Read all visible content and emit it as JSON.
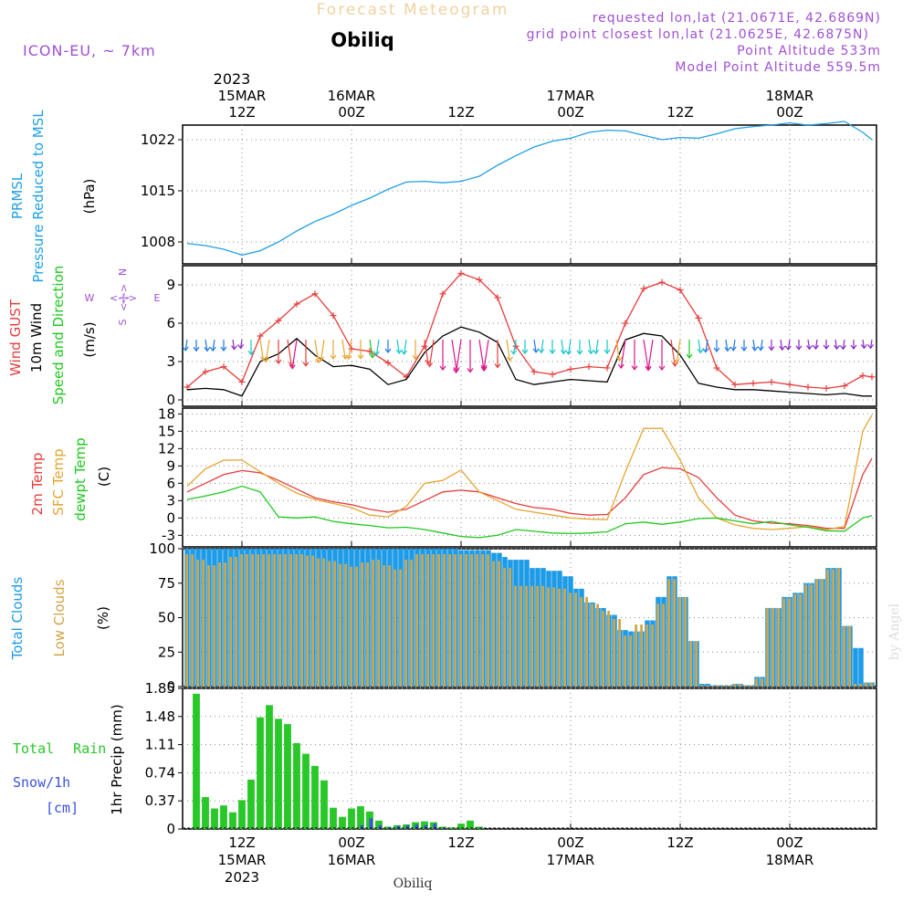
{
  "header": {
    "title": "Forecast Meteogram",
    "location": "Obiliq",
    "model": "ICON-EU, ~ 7km",
    "requested": "requested lon,lat (21.0671E, 42.6869N)",
    "gridpoint": "grid point closest lon,lat (21.0625E, 42.6875N)",
    "point_altitude": "Point Altitude 533m",
    "model_altitude": "Model Point Altitude 559.5m"
  },
  "footer": {
    "location": "Obiliq",
    "credit": "by Angel"
  },
  "time_axis": {
    "year": "2023",
    "ticks": [
      {
        "hour": 12,
        "top": "12Z",
        "date": "15MAR",
        "year": "2023"
      },
      {
        "hour": 24,
        "top": "00Z",
        "date": "16MAR"
      },
      {
        "hour": 36,
        "top": "12Z"
      },
      {
        "hour": 48,
        "top": "00Z",
        "date": "17MAR"
      },
      {
        "hour": 60,
        "top": "12Z"
      },
      {
        "hour": 72,
        "top": "00Z",
        "date": "18MAR"
      }
    ]
  },
  "colors": {
    "pressure": "#1ea0e6",
    "gust": "#e83c3c",
    "wind": "#000000",
    "windlabel": "#1ec81e",
    "t2m": "#e83c3c",
    "sfc": "#e6a532",
    "dew": "#1ec81e",
    "total_clouds": "#1e9be6",
    "low_clouds": "#d2a546",
    "rain": "#28c828",
    "snow": "#3c50dc",
    "purple": "#a050d2"
  },
  "chart_data": [
    {
      "type": "line",
      "panel": "pressure",
      "ylabel": [
        "PRMSL",
        "Pressure Reduced to MSL",
        "(hPa)"
      ],
      "yticks": [
        1008,
        1015,
        1022
      ],
      "ylim": [
        1005,
        1024
      ],
      "series": [
        {
          "name": "PRMSL",
          "x": [
            6,
            8,
            10,
            12,
            14,
            16,
            18,
            20,
            22,
            24,
            26,
            28,
            30,
            32,
            34,
            36,
            38,
            40,
            42,
            44,
            46,
            48,
            50,
            52,
            54,
            56,
            58,
            60,
            62,
            64,
            66,
            68,
            70,
            72,
            74,
            76,
            78,
            80,
            81
          ],
          "values": [
            1007.8,
            1007.5,
            1007.0,
            1006.2,
            1006.8,
            1008.0,
            1009.5,
            1010.8,
            1011.8,
            1013.0,
            1014.0,
            1015.2,
            1016.2,
            1016.3,
            1016.1,
            1016.3,
            1017.0,
            1018.5,
            1019.8,
            1021.0,
            1021.8,
            1022.2,
            1023.0,
            1023.3,
            1023.2,
            1022.6,
            1022.0,
            1022.3,
            1022.2,
            1022.8,
            1023.5,
            1023.8,
            1024.0,
            1024.3,
            1024.0,
            1024.2,
            1024.5,
            1023.0,
            1022.0
          ]
        }
      ]
    },
    {
      "type": "line",
      "panel": "wind",
      "ylabel": [
        "Wind GUST",
        "10m Wind",
        "Speed and Direction",
        "(m/s)"
      ],
      "compass": {
        "n": "N",
        "s": "S",
        "w": "W",
        "e": "E"
      },
      "yticks": [
        0,
        3,
        6,
        9
      ],
      "ylim": [
        -0.5,
        10.5
      ],
      "series": [
        {
          "name": "Wind GUST",
          "x": [
            6,
            8,
            10,
            12,
            14,
            16,
            18,
            20,
            22,
            24,
            26,
            28,
            30,
            32,
            34,
            36,
            38,
            40,
            42,
            44,
            46,
            48,
            50,
            52,
            54,
            56,
            58,
            60,
            62,
            64,
            66,
            68,
            70,
            72,
            74,
            76,
            78,
            80,
            81
          ],
          "values": [
            1.0,
            2.2,
            2.6,
            1.4,
            5.0,
            6.2,
            7.5,
            8.3,
            6.6,
            4.0,
            3.8,
            2.9,
            1.8,
            4.2,
            8.3,
            9.9,
            9.4,
            8.0,
            4.2,
            2.2,
            2.0,
            2.4,
            2.6,
            2.5,
            6.0,
            8.7,
            9.2,
            8.6,
            6.4,
            2.5,
            1.2,
            1.3,
            1.4,
            1.2,
            1.0,
            0.9,
            1.1,
            1.9,
            1.8
          ]
        },
        {
          "name": "10m Wind",
          "x": [
            6,
            8,
            10,
            12,
            14,
            16,
            18,
            20,
            22,
            24,
            26,
            28,
            30,
            32,
            34,
            36,
            38,
            40,
            42,
            44,
            46,
            48,
            50,
            52,
            54,
            56,
            58,
            60,
            62,
            64,
            66,
            68,
            70,
            72,
            74,
            76,
            78,
            80,
            81
          ],
          "values": [
            0.8,
            0.9,
            0.8,
            0.3,
            3.0,
            3.6,
            4.8,
            3.5,
            2.6,
            2.7,
            2.4,
            1.2,
            1.6,
            3.7,
            5.0,
            5.7,
            5.3,
            4.5,
            1.6,
            1.2,
            1.4,
            1.6,
            1.5,
            1.4,
            4.7,
            5.2,
            5.0,
            3.5,
            1.3,
            1.0,
            0.8,
            0.8,
            0.7,
            0.6,
            0.5,
            0.4,
            0.5,
            0.3,
            0.3
          ]
        }
      ]
    },
    {
      "type": "line",
      "panel": "temperature",
      "ylabel": [
        "2m Temp",
        "SFC Temp",
        "dewpt Temp",
        "(C)"
      ],
      "yticks": [
        -3,
        0,
        3,
        6,
        9,
        12,
        15,
        18
      ],
      "ylim": [
        -5,
        19
      ],
      "series": [
        {
          "name": "2m Temp",
          "x": [
            6,
            8,
            10,
            12,
            14,
            16,
            18,
            20,
            22,
            24,
            26,
            28,
            30,
            32,
            34,
            36,
            38,
            40,
            42,
            44,
            46,
            48,
            50,
            52,
            54,
            56,
            58,
            60,
            62,
            64,
            66,
            68,
            70,
            72,
            74,
            76,
            78,
            80,
            81
          ],
          "values": [
            4.5,
            6.0,
            7.5,
            8.2,
            7.8,
            6.5,
            5.0,
            3.5,
            2.8,
            2.3,
            1.5,
            1.0,
            1.5,
            3.0,
            4.5,
            4.8,
            4.5,
            3.5,
            2.5,
            1.8,
            1.5,
            0.8,
            0.5,
            0.6,
            3.5,
            7.5,
            8.7,
            8.5,
            7.0,
            3.5,
            0.5,
            -0.5,
            -0.9,
            -1.0,
            -1.3,
            -1.8,
            -1.8,
            7.5,
            10.3
          ]
        },
        {
          "name": "SFC Temp",
          "x": [
            6,
            8,
            10,
            12,
            14,
            16,
            18,
            20,
            22,
            24,
            26,
            28,
            30,
            32,
            34,
            36,
            38,
            40,
            42,
            44,
            46,
            48,
            50,
            52,
            54,
            56,
            58,
            60,
            62,
            64,
            66,
            68,
            70,
            72,
            74,
            76,
            78,
            80,
            81
          ],
          "values": [
            5.5,
            8.5,
            10.0,
            10.0,
            8.0,
            6.0,
            4.3,
            3.2,
            2.5,
            1.8,
            0.5,
            0.2,
            2.0,
            6.0,
            6.5,
            8.3,
            4.5,
            3.0,
            1.5,
            1.0,
            0.5,
            0.0,
            -0.2,
            -0.3,
            8.0,
            15.5,
            15.5,
            10.0,
            3.5,
            0.0,
            -1.2,
            -1.8,
            -2.0,
            -1.8,
            -1.5,
            -2.0,
            -1.5,
            15.0,
            17.8
          ]
        },
        {
          "name": "dewpt Temp",
          "x": [
            6,
            8,
            10,
            12,
            14,
            16,
            18,
            20,
            22,
            24,
            26,
            28,
            30,
            32,
            34,
            36,
            38,
            40,
            42,
            44,
            46,
            48,
            50,
            52,
            54,
            56,
            58,
            60,
            62,
            64,
            66,
            68,
            70,
            72,
            74,
            76,
            78,
            80,
            81
          ],
          "values": [
            3.2,
            3.8,
            4.5,
            5.5,
            4.5,
            0.2,
            0.0,
            0.2,
            -0.6,
            -1.0,
            -1.3,
            -1.7,
            -1.6,
            -2.0,
            -2.6,
            -3.2,
            -3.4,
            -3.0,
            -2.0,
            -2.3,
            -2.6,
            -2.7,
            -2.6,
            -2.4,
            -1.0,
            -0.7,
            -1.1,
            -0.7,
            -0.1,
            0.0,
            -0.5,
            -1.0,
            -0.6,
            -1.2,
            -1.6,
            -2.2,
            -2.3,
            0.0,
            0.4
          ]
        }
      ]
    },
    {
      "type": "bar",
      "panel": "clouds",
      "ylabel": [
        "Total Clouds",
        "Low Clouds",
        "(%)"
      ],
      "yticks": [
        0,
        25,
        50,
        75,
        100
      ],
      "ylim": [
        0,
        100
      ],
      "x_start": 6,
      "series": [
        {
          "name": "Total Clouds",
          "values": [
            100,
            100,
            100,
            100,
            100,
            100,
            100,
            100,
            100,
            100,
            100,
            100,
            100,
            100,
            100,
            100,
            100,
            100,
            100,
            100,
            100,
            100,
            100,
            100,
            100,
            100,
            100,
            100,
            100,
            100,
            100,
            100,
            100,
            100,
            100,
            100,
            100,
            100,
            100,
            100,
            100,
            100,
            100,
            100,
            100,
            100,
            100,
            100,
            100,
            100,
            99,
            99,
            99,
            99,
            99,
            99,
            97,
            97,
            94,
            92,
            92,
            92,
            92,
            86,
            86,
            86,
            84,
            84,
            84,
            80,
            80,
            71,
            71,
            61,
            61,
            57,
            57,
            52,
            52,
            41,
            41,
            40,
            40,
            40,
            48,
            48,
            65,
            65,
            80,
            80,
            65,
            65,
            33,
            33,
            2,
            2,
            1,
            1,
            1,
            1,
            2,
            2,
            1,
            1,
            7,
            7,
            57,
            57,
            57,
            65,
            65,
            68,
            68,
            75,
            75,
            78,
            78,
            86,
            86,
            86,
            44,
            44,
            28,
            28,
            3,
            3,
            7,
            7
          ]
        },
        {
          "name": "Low Clouds",
          "values": [
            96,
            96,
            92,
            92,
            88,
            88,
            90,
            90,
            94,
            94,
            96,
            96,
            96,
            96,
            96,
            96,
            96,
            96,
            96,
            96,
            96,
            96,
            95,
            95,
            93,
            93,
            91,
            91,
            89,
            89,
            87,
            87,
            90,
            90,
            92,
            92,
            88,
            88,
            85,
            85,
            92,
            92,
            96,
            96,
            96,
            96,
            96,
            96,
            96,
            96,
            96,
            96,
            96,
            96,
            96,
            96,
            91,
            91,
            86,
            86,
            73,
            73,
            73,
            73,
            73,
            73,
            72,
            72,
            71,
            71,
            68,
            68,
            65,
            65,
            60,
            60,
            55,
            55,
            49,
            49,
            37,
            37,
            45,
            45,
            45,
            45,
            60,
            60,
            78,
            78,
            65,
            65,
            33,
            33,
            1,
            1,
            1,
            1,
            1,
            1,
            2,
            2,
            1,
            1,
            6,
            6,
            57,
            57,
            57,
            64,
            64,
            67,
            67,
            74,
            74,
            78,
            78,
            85,
            85,
            86,
            44,
            44,
            2,
            2,
            3,
            3,
            7,
            7
          ]
        }
      ]
    },
    {
      "type": "bar",
      "panel": "precipitation",
      "ylabel": [
        "1hr Precip (mm)"
      ],
      "legend": {
        "rain": "Total Rain",
        "snow": "Snow/1h",
        "snow_unit": "[cm]"
      },
      "yticks": [
        "0",
        "0.37",
        "0.74",
        "1.11",
        "1.48",
        "1.85"
      ],
      "ylim": [
        0,
        1.85
      ],
      "x_start": 7,
      "series": [
        {
          "name": "Total Rain",
          "values": [
            1.78,
            0.42,
            0.27,
            0.31,
            0.22,
            0.38,
            0.65,
            1.47,
            1.63,
            1.45,
            1.38,
            1.13,
            0.99,
            0.83,
            0.64,
            0.28,
            0.16,
            0.27,
            0.3,
            0.23,
            0.11,
            0.03,
            0.05,
            0.06,
            0.09,
            0.1,
            0.09,
            0.03,
            0.02,
            0.07,
            0.11,
            0.03,
            0.0,
            0.0,
            0.0,
            0.0
          ]
        },
        {
          "name": "Snow/1h",
          "values": [
            0,
            0,
            0,
            0,
            0,
            0,
            0,
            0,
            0,
            0,
            0,
            0,
            0,
            0,
            0,
            0,
            0,
            0,
            0.05,
            0.14,
            0.05,
            0.02,
            0.04,
            0.05,
            0.06,
            0.05,
            0.07,
            0.01,
            0,
            0,
            0,
            0,
            0,
            0,
            0,
            0
          ]
        }
      ]
    }
  ]
}
